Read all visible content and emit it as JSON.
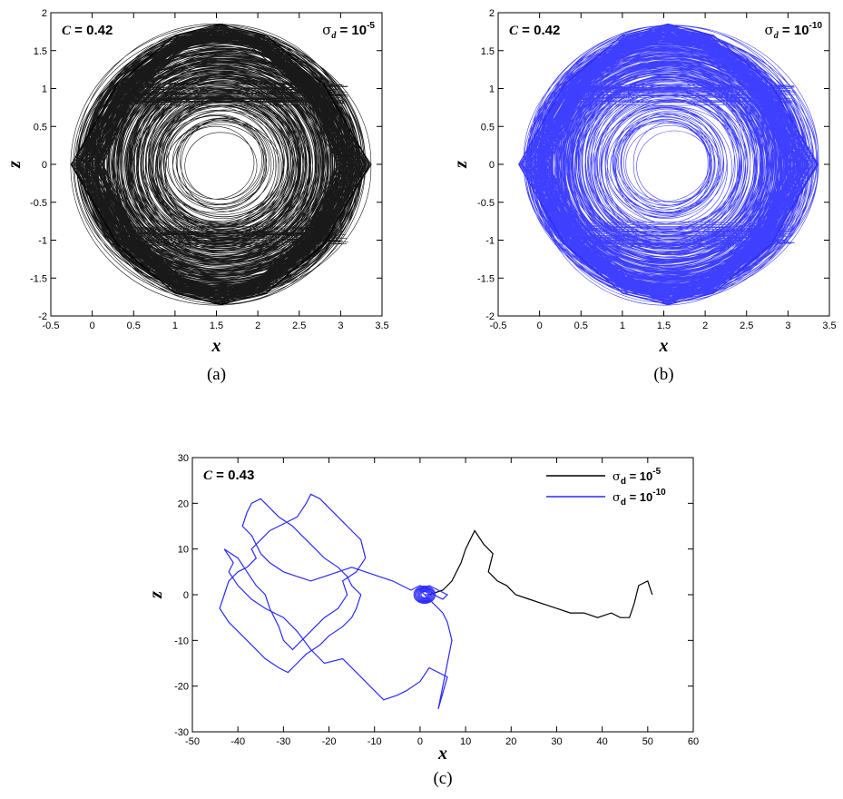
{
  "chart_data": [
    {
      "type": "line",
      "panel": "(a)",
      "caption": "(a)",
      "xlabel": "x",
      "ylabel": "z",
      "xlim": [
        -0.5,
        3.5
      ],
      "ylim": [
        -2,
        2
      ],
      "xticks": [
        "-0.5",
        "0",
        "0.5",
        "1",
        "1.5",
        "2",
        "2.5",
        "3",
        "3.5"
      ],
      "yticks": [
        "-2",
        "-1.5",
        "-1",
        "-0.5",
        "0",
        "0.5",
        "1",
        "1.5",
        "2"
      ],
      "annotation_left": {
        "symbol": "C",
        "text": " = 0.42"
      },
      "annotation_right": {
        "symbol": "σ",
        "sub": "d",
        "text": " = 10",
        "sup": "-5"
      },
      "series": [
        {
          "color": "#000000",
          "x": [
            -0.25,
            0.3,
            1.0,
            1.55,
            2.1,
            2.8,
            3.35,
            2.8,
            2.1,
            1.55,
            1.0,
            0.3
          ],
          "y": [
            0,
            1.05,
            1.7,
            1.85,
            1.7,
            1.05,
            0,
            -1.05,
            -1.7,
            -1.85,
            -1.7,
            -1.05
          ]
        }
      ]
    },
    {
      "type": "line",
      "panel": "(b)",
      "caption": "(b)",
      "xlabel": "x",
      "ylabel": "z",
      "xlim": [
        -0.5,
        3.5
      ],
      "ylim": [
        -2,
        2
      ],
      "xticks": [
        "-0.5",
        "0",
        "0.5",
        "1",
        "1.5",
        "2",
        "2.5",
        "3",
        "3.5"
      ],
      "yticks": [
        "-2",
        "-1.5",
        "-1",
        "-0.5",
        "0",
        "0.5",
        "1",
        "1.5",
        "2"
      ],
      "annotation_left": {
        "symbol": "C",
        "text": " = 0.42"
      },
      "annotation_right": {
        "symbol": "σ",
        "sub": "d",
        "text": " = 10",
        "sup": "-10"
      },
      "series": [
        {
          "color": "#2a2aff",
          "x": [
            -0.25,
            0.3,
            1.0,
            1.55,
            2.1,
            2.8,
            3.35,
            2.8,
            2.1,
            1.55,
            1.0,
            0.3
          ],
          "y": [
            0,
            1.05,
            1.7,
            1.85,
            1.7,
            1.05,
            0,
            -1.05,
            -1.7,
            -1.85,
            -1.7,
            -1.05
          ]
        }
      ]
    },
    {
      "type": "line",
      "panel": "(c)",
      "caption": "(c)",
      "xlabel": "x",
      "ylabel": "z",
      "xlim": [
        -50,
        60
      ],
      "ylim": [
        -30,
        30
      ],
      "xticks": [
        "-50",
        "-40",
        "-30",
        "-20",
        "-10",
        "0",
        "10",
        "20",
        "30",
        "40",
        "50",
        "60"
      ],
      "yticks": [
        "-30",
        "-20",
        "-10",
        "0",
        "10",
        "20",
        "30"
      ],
      "annotation_left": {
        "symbol": "C",
        "text": " = 0.43"
      },
      "legend": [
        {
          "symbol": "σ",
          "sub": "d",
          "text": " = 10",
          "sup": "-5",
          "color": "#000000"
        },
        {
          "symbol": "σ",
          "sub": "d",
          "text": " = 10",
          "sup": "-10",
          "color": "#2a2aff"
        }
      ],
      "series": [
        {
          "color": "#000000",
          "x": [
            2,
            5,
            7,
            9,
            10,
            12,
            14,
            16,
            15,
            17,
            19,
            21,
            24,
            27,
            30,
            33,
            36,
            39,
            42,
            44,
            46,
            47,
            48,
            50,
            51
          ],
          "y": [
            0,
            1,
            3,
            7,
            10,
            14,
            11,
            9,
            5,
            3,
            2,
            0,
            -1,
            -2,
            -3,
            -4,
            -4,
            -5,
            -4,
            -5,
            -5,
            -2,
            2,
            3,
            0
          ]
        },
        {
          "color": "#2a2aff",
          "x": [
            1,
            3,
            5,
            6,
            7,
            6,
            5,
            4,
            6,
            2,
            0,
            -3,
            -5,
            -8,
            -11,
            -14,
            -17,
            -21,
            -24,
            -27,
            -30,
            -34,
            -37,
            -40,
            -42,
            -41,
            -43,
            -40,
            -38,
            -36,
            -34,
            -33,
            -31,
            -30,
            -28,
            -25,
            -23,
            -21,
            -18,
            -16,
            -17,
            -14,
            -12,
            -13,
            -16,
            -19,
            -22,
            -24,
            -25,
            -27,
            -31,
            -33,
            -35,
            -37,
            -36,
            -38,
            -40,
            -42,
            -43,
            -44,
            -42,
            -40,
            -38,
            -36,
            -34,
            -31,
            -29,
            -27,
            -25,
            -22,
            -20,
            -17,
            -15,
            -14,
            -13,
            -15,
            -16,
            -18,
            -21,
            -24,
            -26,
            -28,
            -31,
            -32,
            -34,
            -35,
            -37,
            -38,
            -39,
            -37,
            -36,
            -35,
            -33,
            -30,
            -27,
            -24,
            -21,
            -18,
            -15,
            -12,
            -9,
            -6,
            -4,
            -2,
            0,
            2,
            3,
            5,
            6,
            4,
            2,
            0,
            1,
            2
          ],
          "y": [
            0,
            -2,
            -4,
            -6,
            -10,
            -15,
            -20,
            -25,
            -18,
            -16,
            -19,
            -21,
            -22,
            -23,
            -20,
            -17,
            -14,
            -15,
            -12,
            -8,
            -5,
            -3,
            -1,
            2,
            5,
            7,
            10,
            8,
            5,
            2,
            0,
            -3,
            -7,
            -10,
            -12,
            -9,
            -7,
            -5,
            -3,
            0,
            3,
            5,
            8,
            12,
            15,
            18,
            21,
            22,
            20,
            17,
            15,
            14,
            12,
            10,
            8,
            6,
            5,
            3,
            0,
            -3,
            -6,
            -8,
            -10,
            -12,
            -14,
            -16,
            -17,
            -15,
            -13,
            -11,
            -9,
            -7,
            -5,
            -3,
            0,
            2,
            4,
            6,
            8,
            11,
            13,
            15,
            17,
            18,
            20,
            21,
            20,
            18,
            15,
            13,
            11,
            9,
            7,
            5,
            4,
            3,
            4,
            5,
            6,
            5,
            4,
            3,
            2,
            1,
            2,
            1,
            0,
            -1,
            0,
            1,
            2,
            1,
            0,
            0
          ]
        }
      ]
    }
  ]
}
